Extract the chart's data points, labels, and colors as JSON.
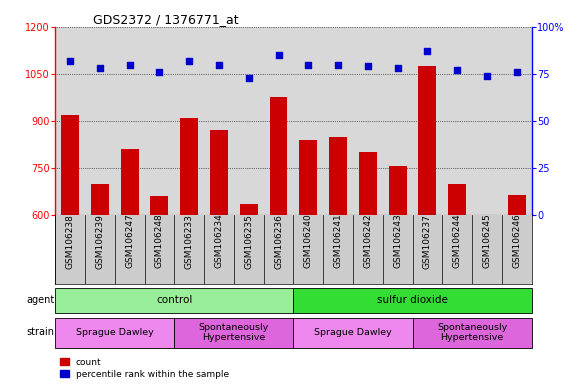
{
  "title": "GDS2372 / 1376771_at",
  "samples": [
    "GSM106238",
    "GSM106239",
    "GSM106247",
    "GSM106248",
    "GSM106233",
    "GSM106234",
    "GSM106235",
    "GSM106236",
    "GSM106240",
    "GSM106241",
    "GSM106242",
    "GSM106243",
    "GSM106237",
    "GSM106244",
    "GSM106245",
    "GSM106246"
  ],
  "counts": [
    920,
    700,
    810,
    660,
    910,
    870,
    635,
    975,
    840,
    850,
    800,
    755,
    1075,
    700,
    600,
    665
  ],
  "percentiles": [
    82,
    78,
    80,
    76,
    82,
    80,
    73,
    85,
    80,
    80,
    79,
    78,
    87,
    77,
    74,
    76
  ],
  "ylim_left": [
    600,
    1200
  ],
  "ylim_right": [
    0,
    100
  ],
  "yticks_left": [
    600,
    750,
    900,
    1050,
    1200
  ],
  "yticks_right": [
    0,
    25,
    50,
    75,
    100
  ],
  "bar_color": "#cc0000",
  "dot_color": "#0000cc",
  "bg_color": "#d8d8d8",
  "label_bg_color": "#cccccc",
  "agent_groups": [
    {
      "label": "control",
      "start": 0,
      "end": 8,
      "color": "#99ee99"
    },
    {
      "label": "sulfur dioxide",
      "start": 8,
      "end": 16,
      "color": "#33dd33"
    }
  ],
  "strain_groups": [
    {
      "label": "Sprague Dawley",
      "start": 0,
      "end": 4,
      "color": "#ee88ee"
    },
    {
      "label": "Spontaneously\nHypertensive",
      "start": 4,
      "end": 8,
      "color": "#dd66dd"
    },
    {
      "label": "Sprague Dawley",
      "start": 8,
      "end": 12,
      "color": "#ee88ee"
    },
    {
      "label": "Spontaneously\nHypertensive",
      "start": 12,
      "end": 16,
      "color": "#dd66dd"
    }
  ],
  "legend_items": [
    {
      "label": "count",
      "color": "#cc0000"
    },
    {
      "label": "percentile rank within the sample",
      "color": "#0000cc"
    }
  ]
}
